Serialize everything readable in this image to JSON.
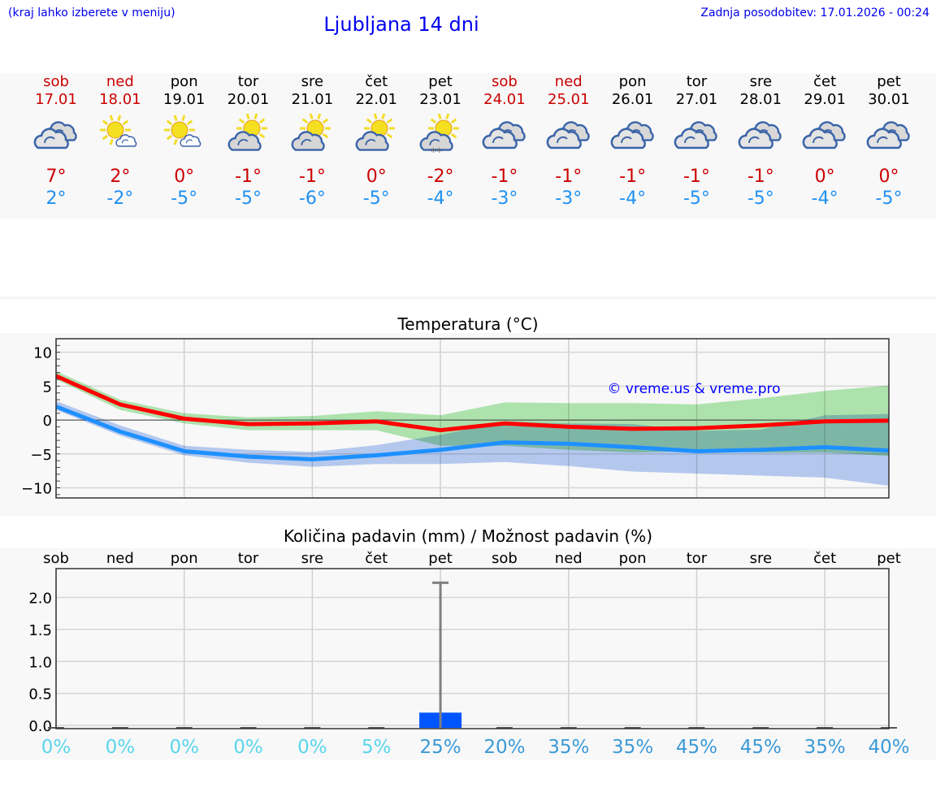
{
  "header": {
    "hint": "(kraj lahko izberete v meniju)",
    "title": "Ljubljana 14 dni",
    "updated": "Zadnja posodobitev: 17.01.2026 - 00:24"
  },
  "days": [
    {
      "name": "sob",
      "date": "17.01",
      "weekend": true,
      "icon": "overcast",
      "max": "7°",
      "min": "2°"
    },
    {
      "name": "ned",
      "date": "18.01",
      "weekend": true,
      "icon": "sun-small-cloud",
      "max": "2°",
      "min": "-2°"
    },
    {
      "name": "pon",
      "date": "19.01",
      "weekend": false,
      "icon": "sun-small-cloud",
      "max": "0°",
      "min": "-5°"
    },
    {
      "name": "tor",
      "date": "20.01",
      "weekend": false,
      "icon": "partly-cloudy",
      "max": "-1°",
      "min": "-5°"
    },
    {
      "name": "sre",
      "date": "21.01",
      "weekend": false,
      "icon": "partly-cloudy",
      "max": "-1°",
      "min": "-6°"
    },
    {
      "name": "čet",
      "date": "22.01",
      "weekend": false,
      "icon": "partly-cloudy",
      "max": "0°",
      "min": "-5°"
    },
    {
      "name": "pet",
      "date": "23.01",
      "weekend": false,
      "icon": "partly-cloudy-snow",
      "max": "-2°",
      "min": "-4°"
    },
    {
      "name": "sob",
      "date": "24.01",
      "weekend": true,
      "icon": "overcast",
      "max": "-1°",
      "min": "-3°"
    },
    {
      "name": "ned",
      "date": "25.01",
      "weekend": true,
      "icon": "overcast",
      "max": "-1°",
      "min": "-3°"
    },
    {
      "name": "pon",
      "date": "26.01",
      "weekend": false,
      "icon": "overcast",
      "max": "-1°",
      "min": "-4°"
    },
    {
      "name": "tor",
      "date": "27.01",
      "weekend": false,
      "icon": "overcast",
      "max": "-1°",
      "min": "-5°"
    },
    {
      "name": "sre",
      "date": "28.01",
      "weekend": false,
      "icon": "overcast",
      "max": "-1°",
      "min": "-5°"
    },
    {
      "name": "čet",
      "date": "29.01",
      "weekend": false,
      "icon": "overcast",
      "max": "0°",
      "min": "-4°"
    },
    {
      "name": "pet",
      "date": "30.01",
      "weekend": false,
      "icon": "overcast",
      "max": "0°",
      "min": "-5°"
    }
  ],
  "colors": {
    "weekend": "#cc0000",
    "max": "#cc0000",
    "min": "#2090f0",
    "max_line": "#ff0000",
    "min_line": "#1e90ff",
    "max_band": "#9fe39f",
    "min_band": "#a8c2f2",
    "bar": "#0055ff",
    "prob_low": "#5ad6ea",
    "prob_high": "#3a9ad8"
  },
  "chart_data": [
    {
      "type": "line",
      "title": "Temperatura (°C)",
      "ylim": [
        -11.5,
        12
      ],
      "yticks": [
        10,
        5,
        0,
        -5,
        -10
      ],
      "ytick_labels": [
        "10",
        "5",
        "0",
        "−5",
        "−10"
      ],
      "grid": true,
      "watermark": "© vreme.us & vreme.pro",
      "series": [
        {
          "role": "max",
          "values": [
            6.5,
            2.3,
            0.2,
            -0.6,
            -0.5,
            -0.2,
            -1.5,
            -0.5,
            -1.0,
            -1.3,
            -1.2,
            -0.8,
            -0.2,
            -0.1
          ],
          "band_low": [
            6,
            1.5,
            -0.5,
            -1.5,
            -1.5,
            -1.5,
            -3.8,
            -3.8,
            -4.4,
            -4.8,
            -4.6,
            -4.8,
            -4.8,
            -5.3
          ],
          "band_high": [
            7.2,
            3,
            1,
            0.4,
            0.6,
            1.3,
            0.7,
            2.6,
            2.5,
            2.5,
            2.3,
            3.2,
            4.3,
            5.1
          ]
        },
        {
          "role": "min",
          "values": [
            2,
            -1.7,
            -4.6,
            -5.4,
            -5.8,
            -5.2,
            -4.4,
            -3.3,
            -3.5,
            -4.0,
            -4.6,
            -4.4,
            -4.0,
            -4.5
          ],
          "band_low": [
            1.5,
            -2.3,
            -5.2,
            -6.3,
            -6.9,
            -6.5,
            -6.5,
            -6.2,
            -6.8,
            -7.6,
            -7.9,
            -8.2,
            -8.5,
            -9.7
          ],
          "band_high": [
            2.8,
            -0.8,
            -3.8,
            -4.4,
            -4.7,
            -3.7,
            -2.2,
            -0.2,
            -0.5,
            -0.6,
            -1.6,
            -1.4,
            0.7,
            0.9
          ]
        }
      ]
    },
    {
      "type": "bar",
      "title": "Količina padavin (mm) / Možnost padavin (%)",
      "ylim": [
        -0.05,
        2.45
      ],
      "yticks": [
        0,
        0.5,
        1,
        1.5,
        2
      ],
      "ytick_labels": [
        "0.0",
        "0.5",
        "1.0",
        "1.5",
        "2.0"
      ],
      "grid": true,
      "categories": [
        "sob",
        "ned",
        "pon",
        "tor",
        "sre",
        "čet",
        "pet",
        "sob",
        "ned",
        "pon",
        "tor",
        "sre",
        "čet",
        "pet"
      ],
      "values": [
        0,
        0,
        0,
        0,
        0,
        0,
        0.2,
        0,
        0,
        0,
        0,
        0,
        0,
        0
      ],
      "error_max": [
        0,
        0,
        0,
        0,
        0,
        0,
        2.23,
        0,
        0,
        0,
        0,
        0,
        0,
        0
      ],
      "probability": [
        "0%",
        "0%",
        "0%",
        "0%",
        "0%",
        "5%",
        "25%",
        "20%",
        "35%",
        "35%",
        "45%",
        "45%",
        "35%",
        "40%"
      ]
    }
  ]
}
